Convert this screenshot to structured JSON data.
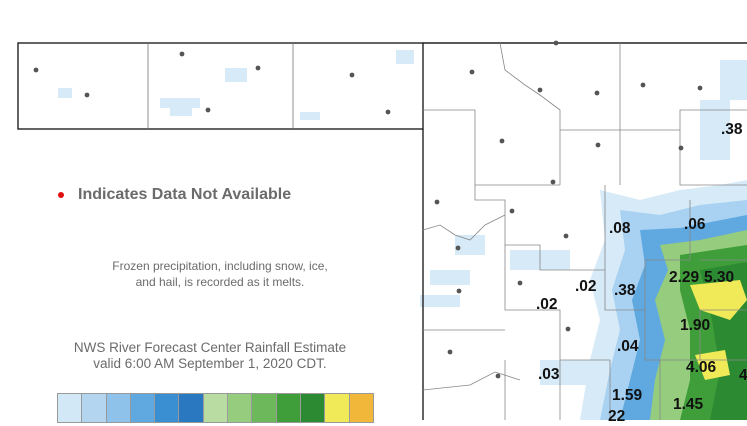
{
  "legend": {
    "na_label": "Indicates Data Not Available",
    "frozen_note": "Frozen precipitation, including snow, ice, and hail, is recorded as it melts.",
    "estimate_line1": "NWS River Forecast Center Rainfall Estimate",
    "estimate_line2": "valid 6:00 AM September 1, 2020 CDT.",
    "colors": [
      "#d2e8f7",
      "#b3d5f0",
      "#8ec2ea",
      "#5fa9e0",
      "#3a8fd2",
      "#2a78c0",
      "#b8dca2",
      "#95cc7e",
      "#6db85a",
      "#3f9e3a",
      "#2b8a32",
      "#f0ea58",
      "#f1b73b"
    ]
  },
  "values": [
    ".38",
    ".08",
    ".06",
    "2.29",
    "5.30",
    ".02",
    ".38",
    ".02",
    "1.90",
    ".04",
    "4.06",
    ".03",
    "1.59",
    "1.45",
    "22",
    "4"
  ]
}
